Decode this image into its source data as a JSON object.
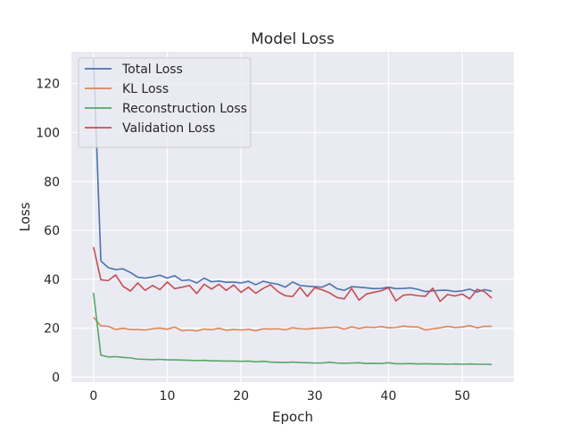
{
  "chart_data": {
    "type": "line",
    "title": "Model Loss",
    "xlabel": "Epoch",
    "ylabel": "Loss",
    "xlim": [
      -3,
      57
    ],
    "ylim": [
      -2,
      133
    ],
    "xticks": [
      0,
      10,
      20,
      30,
      40,
      50
    ],
    "yticks": [
      0,
      20,
      40,
      60,
      80,
      100,
      120
    ],
    "grid": true,
    "legend_position": "top-left",
    "x": [
      0,
      1,
      2,
      3,
      4,
      5,
      6,
      7,
      8,
      9,
      10,
      11,
      12,
      13,
      14,
      15,
      16,
      17,
      18,
      19,
      20,
      21,
      22,
      23,
      24,
      25,
      26,
      27,
      28,
      29,
      30,
      31,
      32,
      33,
      34,
      35,
      36,
      37,
      38,
      39,
      40,
      41,
      42,
      43,
      44,
      45,
      46,
      47,
      48,
      49,
      50,
      51,
      52,
      53,
      54
    ],
    "series": [
      {
        "name": "Total Loss",
        "color": "#4c72b0",
        "values": [
          130.0,
          47.5,
          44.8,
          44.0,
          44.3,
          42.8,
          40.9,
          40.5,
          41.0,
          41.7,
          40.5,
          41.5,
          39.5,
          39.8,
          38.5,
          40.5,
          39.0,
          39.3,
          38.8,
          38.9,
          38.5,
          39.2,
          37.8,
          39.2,
          38.5,
          38.0,
          36.8,
          38.9,
          37.5,
          37.2,
          37.0,
          36.8,
          38.2,
          36.2,
          35.5,
          37.0,
          36.8,
          36.5,
          36.2,
          36.3,
          36.8,
          36.2,
          36.3,
          36.5,
          35.9,
          35.0,
          35.3,
          35.5,
          35.5,
          35.0,
          35.3,
          36.0,
          34.8,
          35.8,
          35.2
        ]
      },
      {
        "name": "KL Loss",
        "color": "#dd8452",
        "values": [
          24.5,
          21.0,
          20.8,
          19.5,
          20.0,
          19.5,
          19.5,
          19.3,
          19.8,
          20.1,
          19.6,
          20.5,
          19.0,
          19.3,
          18.9,
          19.7,
          19.4,
          20.0,
          19.2,
          19.5,
          19.3,
          19.6,
          19.0,
          19.8,
          19.7,
          19.8,
          19.4,
          20.2,
          19.8,
          19.7,
          20.0,
          20.1,
          20.3,
          20.5,
          19.6,
          20.6,
          19.9,
          20.5,
          20.3,
          20.7,
          20.2,
          20.3,
          20.9,
          20.6,
          20.5,
          19.3,
          19.8,
          20.2,
          20.8,
          20.3,
          20.5,
          21.1,
          20.2,
          20.8,
          20.8
        ]
      },
      {
        "name": "Reconstruction Loss",
        "color": "#55a868",
        "values": [
          34.5,
          9.0,
          8.3,
          8.4,
          8.1,
          7.9,
          7.4,
          7.3,
          7.2,
          7.3,
          7.1,
          7.1,
          7.0,
          6.9,
          6.8,
          6.9,
          6.7,
          6.7,
          6.6,
          6.6,
          6.5,
          6.6,
          6.3,
          6.5,
          6.2,
          6.1,
          6.0,
          6.2,
          6.0,
          5.9,
          5.8,
          5.8,
          6.1,
          5.8,
          5.7,
          5.8,
          5.9,
          5.6,
          5.7,
          5.6,
          5.9,
          5.5,
          5.5,
          5.6,
          5.4,
          5.5,
          5.4,
          5.4,
          5.3,
          5.4,
          5.3,
          5.4,
          5.3,
          5.3,
          5.2
        ]
      },
      {
        "name": "Validation Loss",
        "color": "#c44e52",
        "values": [
          53.2,
          39.8,
          39.5,
          41.8,
          37.2,
          35.2,
          38.5,
          35.5,
          37.5,
          35.8,
          38.9,
          36.2,
          36.8,
          37.5,
          34.2,
          38.0,
          36.0,
          38.0,
          35.5,
          37.7,
          34.7,
          36.8,
          34.3,
          36.3,
          37.8,
          35.0,
          33.3,
          33.0,
          36.7,
          33.0,
          36.6,
          35.7,
          34.5,
          32.6,
          32.0,
          36.3,
          31.5,
          34.0,
          34.7,
          35.3,
          36.6,
          31.2,
          33.5,
          33.8,
          33.3,
          33.1,
          36.4,
          31.0,
          33.8,
          33.2,
          34.0,
          32.0,
          35.9,
          35.0,
          32.3
        ]
      }
    ]
  }
}
